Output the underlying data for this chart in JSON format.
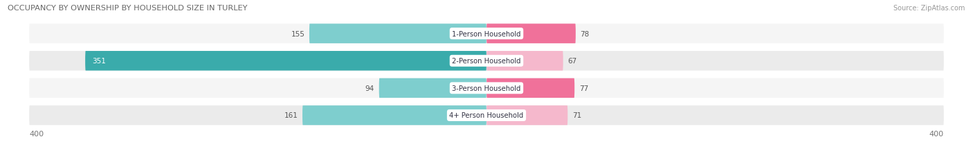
{
  "title": "OCCUPANCY BY OWNERSHIP BY HOUSEHOLD SIZE IN TURLEY",
  "source": "Source: ZipAtlas.com",
  "categories": [
    "1-Person Household",
    "2-Person Household",
    "3-Person Household",
    "4+ Person Household"
  ],
  "owner_values": [
    155,
    351,
    94,
    161
  ],
  "renter_values": [
    78,
    67,
    77,
    71
  ],
  "owner_color_light": "#7ecece",
  "owner_color_dark": "#3aabab",
  "renter_color_dark": "#f0719a",
  "renter_color_light": "#f5b8cc",
  "axis_max": 400,
  "bg_color": "#ffffff",
  "bar_bg_color": "#e8e8e8",
  "row_bg_even": "#f5f5f5",
  "row_bg_odd": "#ebebeb",
  "label_color": "#555555",
  "title_color": "#666666"
}
